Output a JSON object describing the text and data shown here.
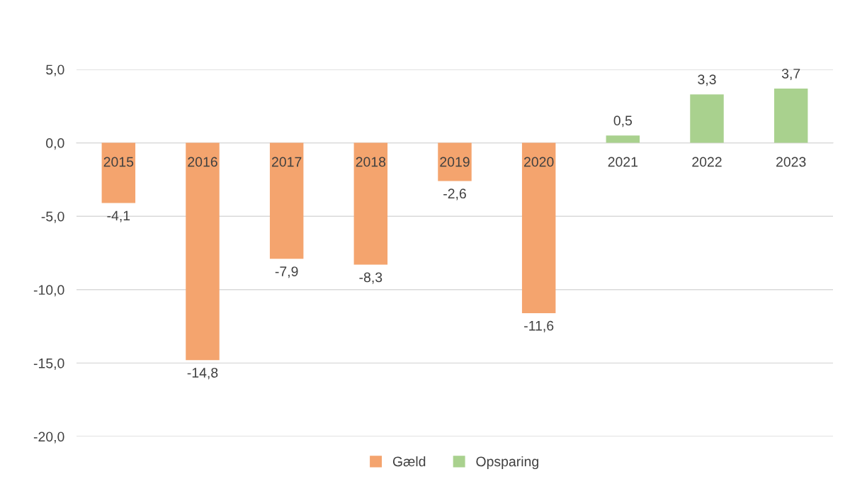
{
  "chart_data": {
    "type": "bar",
    "stacked": true,
    "categories": [
      "2015",
      "2016",
      "2017",
      "2018",
      "2019",
      "2020",
      "2021",
      "2022",
      "2023"
    ],
    "series": [
      {
        "name": "Gæld",
        "color": "#f4a46e",
        "values": [
          -4.1,
          -14.8,
          -7.9,
          -8.3,
          -2.6,
          -11.6,
          null,
          null,
          null
        ],
        "value_labels": [
          "-4,1",
          "-14,8",
          "-7,9",
          "-8,3",
          "-2,6",
          "-11,6",
          null,
          null,
          null
        ]
      },
      {
        "name": "Opsparing",
        "color": "#a9d18e",
        "values": [
          null,
          null,
          null,
          null,
          null,
          null,
          0.5,
          3.3,
          3.7
        ],
        "value_labels": [
          null,
          null,
          null,
          null,
          null,
          null,
          "0,5",
          "3,3",
          "3,7"
        ]
      }
    ],
    "ylim": [
      -20,
      5
    ],
    "yticks": [
      {
        "value": -20,
        "label": "-20,0"
      },
      {
        "value": -15,
        "label": "-15,0"
      },
      {
        "value": -10,
        "label": "-10,0"
      },
      {
        "value": -5,
        "label": "-5,0"
      },
      {
        "value": 0,
        "label": "0,0"
      },
      {
        "value": 5,
        "label": "5,0"
      }
    ],
    "grid": "y",
    "legend": "bottom"
  }
}
